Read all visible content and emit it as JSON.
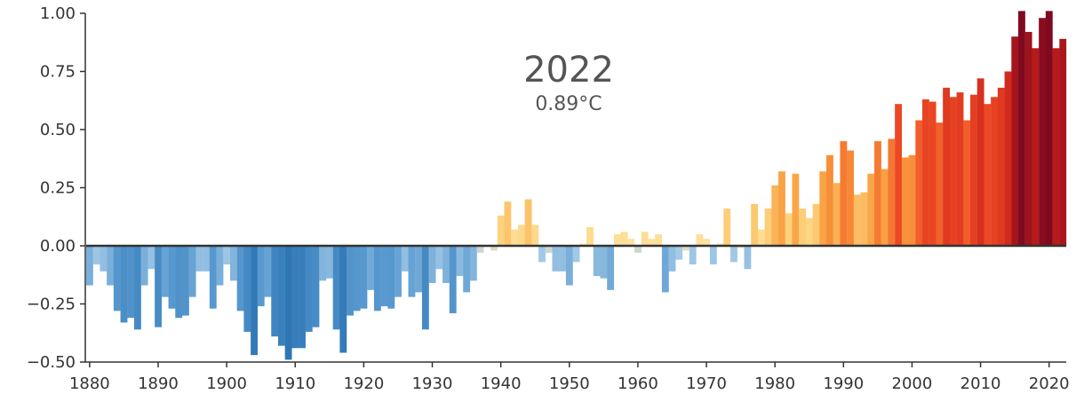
{
  "chart_data": {
    "type": "bar",
    "title": "",
    "xlabel": "",
    "ylabel": "",
    "highlight": {
      "year": "2022",
      "value_text": "0.89°C"
    },
    "ylim": [
      -0.5,
      1.0
    ],
    "xlim": [
      1880,
      2022
    ],
    "y_ticks": [
      "1.00",
      "0.75",
      "0.50",
      "0.25",
      "0.00",
      "−0.25",
      "−0.50"
    ],
    "y_tick_values": [
      1.0,
      0.75,
      0.5,
      0.25,
      0.0,
      -0.25,
      -0.5
    ],
    "x_ticks": [
      "1880",
      "1890",
      "1900",
      "1910",
      "1920",
      "1930",
      "1940",
      "1950",
      "1960",
      "1970",
      "1980",
      "1990",
      "2000",
      "2010",
      "2020"
    ],
    "x_tick_values": [
      1880,
      1890,
      1900,
      1910,
      1920,
      1930,
      1940,
      1950,
      1960,
      1970,
      1980,
      1990,
      2000,
      2010,
      2020
    ],
    "grid": false,
    "color_scale": {
      "cold": "#2166ac",
      "neutral": "#fddc8a",
      "hot": "#7f0000"
    },
    "series": [
      {
        "years": [
          1880,
          1881,
          1882,
          1883,
          1884,
          1885,
          1886,
          1887,
          1888,
          1889,
          1890,
          1891,
          1892,
          1893,
          1894,
          1895,
          1896,
          1897,
          1898,
          1899,
          1900,
          1901,
          1902,
          1903,
          1904,
          1905,
          1906,
          1907,
          1908,
          1909,
          1910,
          1911,
          1912,
          1913,
          1914,
          1915,
          1916,
          1917,
          1918,
          1919,
          1920,
          1921,
          1922,
          1923,
          1924,
          1925,
          1926,
          1927,
          1928,
          1929,
          1930,
          1931,
          1932,
          1933,
          1934,
          1935,
          1936,
          1937,
          1938,
          1939,
          1940,
          1941,
          1942,
          1943,
          1944,
          1945,
          1946,
          1947,
          1948,
          1949,
          1950,
          1951,
          1952,
          1953,
          1954,
          1955,
          1956,
          1957,
          1958,
          1959,
          1960,
          1961,
          1962,
          1963,
          1964,
          1965,
          1966,
          1967,
          1968,
          1969,
          1970,
          1971,
          1972,
          1973,
          1974,
          1975,
          1976,
          1977,
          1978,
          1979,
          1980,
          1981,
          1982,
          1983,
          1984,
          1985,
          1986,
          1987,
          1988,
          1989,
          1990,
          1991,
          1992,
          1993,
          1994,
          1995,
          1996,
          1997,
          1998,
          1999,
          2000,
          2001,
          2002,
          2003,
          2004,
          2005,
          2006,
          2007,
          2008,
          2009,
          2010,
          2011,
          2012,
          2013,
          2014,
          2015,
          2016,
          2017,
          2018,
          2019,
          2020,
          2021,
          2022
        ],
        "values": [
          -0.17,
          -0.08,
          -0.11,
          -0.17,
          -0.28,
          -0.33,
          -0.31,
          -0.36,
          -0.17,
          -0.1,
          -0.35,
          -0.22,
          -0.27,
          -0.31,
          -0.3,
          -0.22,
          -0.11,
          -0.11,
          -0.27,
          -0.17,
          -0.08,
          -0.15,
          -0.28,
          -0.37,
          -0.47,
          -0.26,
          -0.22,
          -0.39,
          -0.43,
          -0.49,
          -0.44,
          -0.44,
          -0.37,
          -0.35,
          -0.15,
          -0.14,
          -0.36,
          -0.46,
          -0.3,
          -0.28,
          -0.27,
          -0.19,
          -0.28,
          -0.26,
          -0.27,
          -0.22,
          -0.11,
          -0.22,
          -0.2,
          -0.36,
          -0.16,
          -0.1,
          -0.16,
          -0.29,
          -0.13,
          -0.2,
          -0.15,
          -0.03,
          0.0,
          -0.02,
          0.13,
          0.19,
          0.07,
          0.09,
          0.2,
          0.09,
          -0.07,
          -0.03,
          -0.11,
          -0.11,
          -0.17,
          -0.07,
          0.01,
          0.08,
          -0.13,
          -0.14,
          -0.19,
          0.05,
          0.06,
          0.03,
          -0.03,
          0.06,
          0.03,
          0.05,
          -0.2,
          -0.11,
          -0.06,
          -0.02,
          -0.08,
          0.05,
          0.03,
          -0.08,
          0.01,
          0.16,
          -0.07,
          -0.01,
          -0.1,
          0.18,
          0.07,
          0.16,
          0.26,
          0.32,
          0.14,
          0.31,
          0.16,
          0.12,
          0.18,
          0.32,
          0.39,
          0.27,
          0.45,
          0.41,
          0.22,
          0.23,
          0.31,
          0.45,
          0.33,
          0.46,
          0.61,
          0.38,
          0.39,
          0.54,
          0.63,
          0.62,
          0.53,
          0.68,
          0.64,
          0.66,
          0.54,
          0.65,
          0.72,
          0.61,
          0.64,
          0.68,
          0.75,
          0.9,
          1.01,
          0.92,
          0.85,
          0.98,
          1.01,
          0.85,
          0.89
        ]
      }
    ]
  }
}
